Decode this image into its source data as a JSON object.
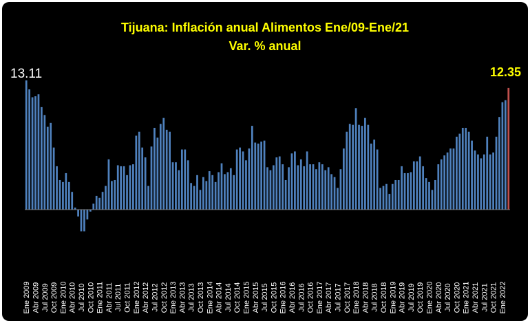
{
  "chart_data": {
    "type": "bar",
    "title": "Tijuana: Inflación anual Alimentos Ene/09-Ene/21",
    "subtitle": "Var. % anual",
    "first_value_label": "13.11",
    "last_value_label": "12.35",
    "series_color": "#4f81bd",
    "last_bar_color": "#c0504d",
    "ylim": [
      -2.5,
      13.5
    ],
    "x_tick_labels": [
      "Ene 2009",
      "Abr 2009",
      "Jul 2009",
      "Oct 2009",
      "Ene 2010",
      "Abr 2010",
      "Jul 2010",
      "Oct 2010",
      "Ene 2011",
      "Abr 2011",
      "Jul 2011",
      "Oct 2011",
      "Ene 2012",
      "Abr 2012",
      "Jul 2012",
      "Oct 2012",
      "Ene 2013",
      "Abr 2013",
      "Jul 2013",
      "Oct 2013",
      "Ene 2014",
      "Abr 2014",
      "Jul 2014",
      "Oct 2014",
      "Ene 2015",
      "Abr 2015",
      "Jul 2015",
      "Oct 2015",
      "Ene 2016",
      "Abr 2016",
      "Jul 2016",
      "Oct 2016",
      "Ene 2017",
      "Abr 2017",
      "Jul 2017",
      "Oct 2017",
      "Ene 2018",
      "Abr 2018",
      "Jul 2018",
      "Oct 2018",
      "Ene 2019",
      "Abr 2019",
      "Jul 2019",
      "Oct 2019",
      "Ene 2020",
      "Abr 2020",
      "Jul 2020",
      "Oct 2020",
      "Ene 2021",
      "Abr 2021",
      "Jul 2021",
      "Oct 2021",
      "Ene 2022"
    ],
    "values": [
      13.11,
      12.2,
      11.4,
      11.5,
      11.7,
      10.4,
      9.6,
      8.4,
      8.8,
      6.3,
      4.4,
      3.0,
      2.8,
      3.7,
      2.8,
      1.8,
      0.2,
      -0.7,
      -2.2,
      -2.2,
      -1.0,
      -0.2,
      0.6,
      1.4,
      1.2,
      1.8,
      2.4,
      5.1,
      2.9,
      3.0,
      4.5,
      4.4,
      4.4,
      3.5,
      4.5,
      4.6,
      7.5,
      7.9,
      6.3,
      5.3,
      2.4,
      6.4,
      8.3,
      7.3,
      8.7,
      9.3,
      8.1,
      7.9,
      4.8,
      4.8,
      4.0,
      6.1,
      6.1,
      5.0,
      2.7,
      2.4,
      3.5,
      2.0,
      3.3,
      2.9,
      3.9,
      3.5,
      2.8,
      3.8,
      4.7,
      3.6,
      3.8,
      4.2,
      3.5,
      6.1,
      6.3,
      5.9,
      5.0,
      6.2,
      8.5,
      6.8,
      6.7,
      6.9,
      7.0,
      4.3,
      4.0,
      4.5,
      5.3,
      5.4,
      4.6,
      3.0,
      4.3,
      5.7,
      5.9,
      4.5,
      5.1,
      4.4,
      5.9,
      4.6,
      4.6,
      4.1,
      4.8,
      4.6,
      4.0,
      4.3,
      3.6,
      3.3,
      2.2,
      4.1,
      6.2,
      7.9,
      8.7,
      8.6,
      10.3,
      8.6,
      8.5,
      9.3,
      8.6,
      6.7,
      7.1,
      6.1,
      2.2,
      2.4,
      2.6,
      1.6,
      2.6,
      3.0,
      3.0,
      4.4,
      3.7,
      3.7,
      3.8,
      4.9,
      4.9,
      5.4,
      4.4,
      3.2,
      2.8,
      2.0,
      3.0,
      4.6,
      5.1,
      5.5,
      5.8,
      6.2,
      6.2,
      7.4,
      7.7,
      8.3,
      8.3,
      7.9,
      7.0,
      6.0,
      5.6,
      5.2,
      5.6,
      7.4,
      5.6,
      5.8,
      7.4,
      9.4,
      10.9,
      11.1,
      12.35
    ]
  }
}
